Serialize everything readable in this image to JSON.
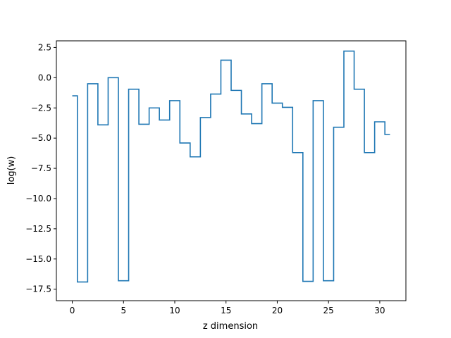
{
  "chart_data": {
    "type": "line",
    "drawstyle": "steps-mid",
    "title": "",
    "xlabel": "z dimension",
    "ylabel": "log(w)",
    "xlim": [
      -1.55,
      32.55
    ],
    "ylim": [
      -18.45,
      3.05
    ],
    "xticks": [
      0,
      5,
      10,
      15,
      20,
      25,
      30
    ],
    "xtick_labels": [
      "0",
      "5",
      "10",
      "15",
      "20",
      "25",
      "30"
    ],
    "yticks": [
      2.5,
      0.0,
      -2.5,
      -5.0,
      -7.5,
      -10.0,
      -12.5,
      -15.0,
      -17.5
    ],
    "ytick_labels": [
      "2.5",
      "0.0",
      "−2.5",
      "−5.0",
      "−7.5",
      "−10.0",
      "−12.5",
      "−15.0",
      "−17.5"
    ],
    "grid": false,
    "legend": "none",
    "series": [
      {
        "color": "#1f77b4",
        "x": [
          0,
          1,
          2,
          3,
          4,
          5,
          6,
          7,
          8,
          9,
          10,
          11,
          12,
          13,
          14,
          15,
          16,
          17,
          18,
          19,
          20,
          21,
          22,
          23,
          24,
          25,
          26,
          27,
          28,
          29,
          30,
          31
        ],
        "y": [
          -1.5,
          -16.9,
          -0.5,
          -3.9,
          0.0,
          -16.8,
          -0.95,
          -3.85,
          -2.5,
          -3.5,
          -1.9,
          -5.4,
          -6.55,
          -3.3,
          -1.35,
          1.45,
          -1.05,
          -3.0,
          -3.8,
          -0.5,
          -2.1,
          -2.45,
          -6.2,
          -16.85,
          -1.9,
          -16.8,
          -4.1,
          2.2,
          -0.95,
          -6.2,
          -3.65,
          -4.7
        ]
      }
    ]
  }
}
